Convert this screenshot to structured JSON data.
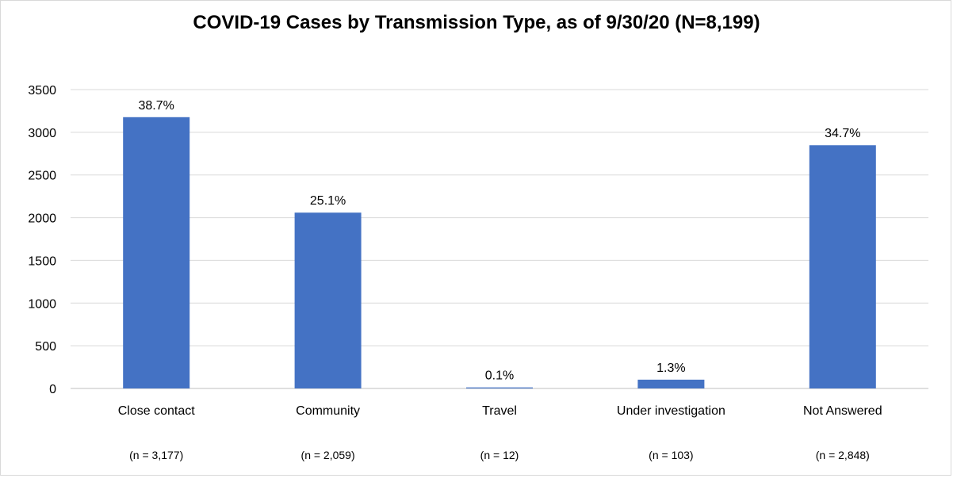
{
  "chart_data": {
    "type": "bar",
    "title": "COVID-19 Cases by Transmission Type, as of 9/30/20 (N=8,199)",
    "xlabel": "",
    "ylabel": "",
    "ylim": [
      0,
      3500
    ],
    "yticks": [
      0,
      500,
      1000,
      1500,
      2000,
      2500,
      3000,
      3500
    ],
    "grid": true,
    "legend": "none",
    "bar_color": "#4472C4",
    "categories": [
      "Close contact",
      "Community",
      "Travel",
      "Under investigation",
      "Not Answered"
    ],
    "counts": [
      "(n = 3,177)",
      "(n = 2,059)",
      "(n = 12)",
      "(n = 103)",
      "(n = 2,848)"
    ],
    "values": [
      3177,
      2059,
      12,
      103,
      2848
    ],
    "data_labels": [
      "38.7%",
      "25.1%",
      "0.1%",
      "1.3%",
      "34.7%"
    ]
  }
}
